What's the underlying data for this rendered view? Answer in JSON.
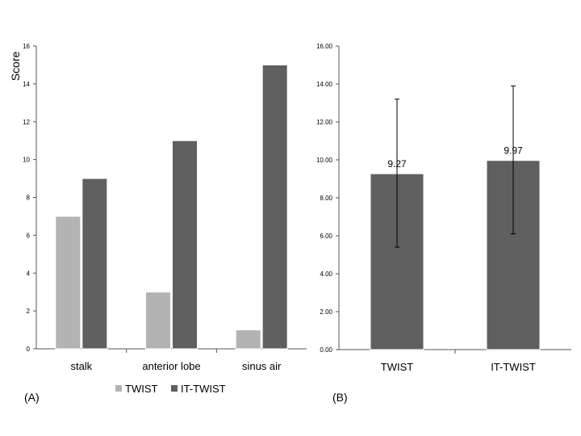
{
  "chart_data": [
    {
      "type": "bar",
      "panel_label": "(A)",
      "ylabel": "Score",
      "xlabel": "",
      "ylim": [
        0,
        16
      ],
      "yticks": [
        "0",
        "2",
        "4",
        "6",
        "8",
        "10",
        "12",
        "14",
        "16"
      ],
      "categories": [
        "stalk",
        "anterior lobe",
        "sinus air"
      ],
      "series": [
        {
          "name": "TWIST",
          "color": "#b3b3b3",
          "values": [
            7,
            3,
            1
          ]
        },
        {
          "name": "IT-TWIST",
          "color": "#5f5f5f",
          "values": [
            9,
            11,
            15
          ]
        }
      ],
      "legend": "bottom",
      "grid": false
    },
    {
      "type": "bar",
      "panel_label": "(B)",
      "ylabel": "",
      "xlabel": "",
      "ylim": [
        0,
        16
      ],
      "yticks": [
        "0.00",
        "2.00",
        "4.00",
        "6.00",
        "8.00",
        "10.00",
        "12.00",
        "14.00",
        "16.00"
      ],
      "categories": [
        "TWIST",
        "IT-TWIST"
      ],
      "values": [
        9.27,
        9.97
      ],
      "data_labels": [
        "9.27",
        "9.97"
      ],
      "error_low": [
        5.4,
        6.1
      ],
      "error_high": [
        13.2,
        13.9
      ],
      "color": "#5f5f5f",
      "grid": false
    }
  ]
}
